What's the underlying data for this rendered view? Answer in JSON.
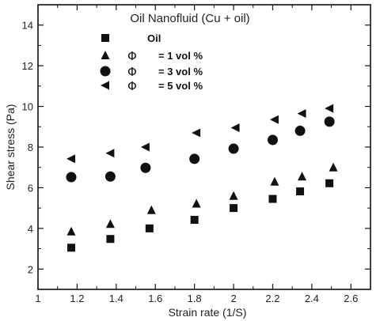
{
  "chart_data": {
    "type": "scatter",
    "title": "Oil Nanofluid (Cu + oil)",
    "xlabel": "Strain rate (1/S)",
    "ylabel": "Shear stress  (Pa)",
    "xlim": [
      1,
      2.7
    ],
    "ylim": [
      1,
      15
    ],
    "xticks": [
      1,
      1.2,
      1.4,
      1.6,
      1.8,
      2,
      2.2,
      2.4,
      2.6
    ],
    "xtick_labels": [
      "1",
      "1.2",
      "1.4",
      "1.6",
      "1.8",
      "2",
      "2.2",
      "2.4",
      "2.6"
    ],
    "yticks": [
      2,
      4,
      6,
      8,
      10,
      12,
      14
    ],
    "ytick_labels": [
      "2",
      "4",
      "6",
      "8",
      "10",
      "12",
      "14"
    ],
    "grid": false,
    "legend_position": "top-center",
    "series": [
      {
        "name": "Oil",
        "marker": "square",
        "legend_prefix": "",
        "x": [
          1.17,
          1.37,
          1.57,
          1.8,
          2.0,
          2.2,
          2.34,
          2.49
        ],
        "y": [
          3.05,
          3.48,
          4.0,
          4.42,
          5.0,
          5.45,
          5.82,
          6.22
        ]
      },
      {
        "name": "= 1 vol  %",
        "marker": "triangle-up",
        "legend_prefix": "Φ",
        "x": [
          1.17,
          1.37,
          1.58,
          1.81,
          2.0,
          2.21,
          2.35,
          2.51
        ],
        "y": [
          3.85,
          4.22,
          4.9,
          5.22,
          5.6,
          6.3,
          6.55,
          7.0
        ]
      },
      {
        "name": "= 3 vol  %",
        "marker": "circle",
        "legend_prefix": "Φ",
        "x": [
          1.17,
          1.37,
          1.55,
          1.8,
          2.0,
          2.2,
          2.34,
          2.49
        ],
        "y": [
          6.52,
          6.55,
          6.98,
          7.42,
          7.92,
          8.35,
          8.8,
          9.25
        ]
      },
      {
        "name": "= 5 vol  %",
        "marker": "triangle-left",
        "legend_prefix": "Φ",
        "x": [
          1.17,
          1.37,
          1.55,
          1.81,
          2.01,
          2.21,
          2.35,
          2.49
        ],
        "y": [
          7.42,
          7.7,
          8.0,
          8.7,
          8.95,
          9.35,
          9.65,
          9.9
        ]
      }
    ]
  }
}
